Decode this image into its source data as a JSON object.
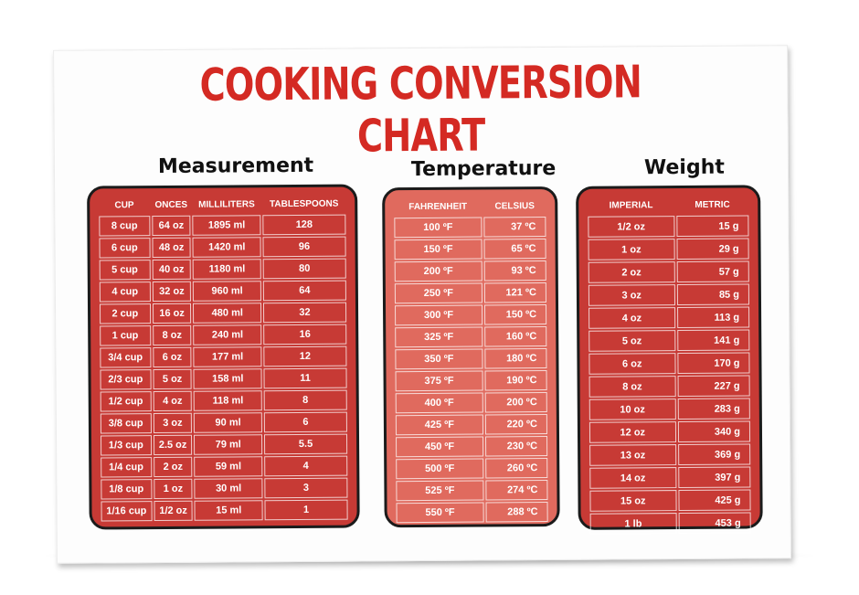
{
  "title": "COOKING CONVERSION CHART",
  "measurement": {
    "heading": "Measurement",
    "columns": [
      "CUP",
      "ONCES",
      "MILLILITERS",
      "TABLESPOONS"
    ],
    "rows": [
      [
        "8 cup",
        "64 oz",
        "1895 ml",
        "128"
      ],
      [
        "6 cup",
        "48 oz",
        "1420 ml",
        "96"
      ],
      [
        "5 cup",
        "40 oz",
        "1180 ml",
        "80"
      ],
      [
        "4 cup",
        "32 oz",
        "960 ml",
        "64"
      ],
      [
        "2 cup",
        "16 oz",
        "480 ml",
        "32"
      ],
      [
        "1 cup",
        "8 oz",
        "240 ml",
        "16"
      ],
      [
        "3/4 cup",
        "6 oz",
        "177 ml",
        "12"
      ],
      [
        "2/3 cup",
        "5 oz",
        "158 ml",
        "11"
      ],
      [
        "1/2 cup",
        "4 oz",
        "118 ml",
        "8"
      ],
      [
        "3/8 cup",
        "3 oz",
        "90 ml",
        "6"
      ],
      [
        "1/3 cup",
        "2.5 oz",
        "79 ml",
        "5.5"
      ],
      [
        "1/4 cup",
        "2 oz",
        "59 ml",
        "4"
      ],
      [
        "1/8 cup",
        "1 oz",
        "30 ml",
        "3"
      ],
      [
        "1/16 cup",
        "1/2 oz",
        "15 ml",
        "1"
      ]
    ]
  },
  "temperature": {
    "heading": "Temperature",
    "columns": [
      "FAHRENHEIT",
      "CELSIUS"
    ],
    "rows": [
      [
        "100 ºF",
        "37 ºC"
      ],
      [
        "150 ºF",
        "65 ºC"
      ],
      [
        "200 ºF",
        "93 ºC"
      ],
      [
        "250 ºF",
        "121 ºC"
      ],
      [
        "300 ºF",
        "150 ºC"
      ],
      [
        "325 ºF",
        "160 ºC"
      ],
      [
        "350 ºF",
        "180 ºC"
      ],
      [
        "375 ºF",
        "190 ºC"
      ],
      [
        "400 ºF",
        "200 ºC"
      ],
      [
        "425 ºF",
        "220 ºC"
      ],
      [
        "450 ºF",
        "230 ºC"
      ],
      [
        "500 ºF",
        "260 ºC"
      ],
      [
        "525 ºF",
        "274 ºC"
      ],
      [
        "550 ºF",
        "288 ºC"
      ]
    ]
  },
  "weight": {
    "heading": "Weight",
    "columns": [
      "IMPERIAL",
      "METRIC"
    ],
    "rows": [
      [
        "1/2 oz",
        "15 g"
      ],
      [
        "1 oz",
        "29 g"
      ],
      [
        "2 oz",
        "57 g"
      ],
      [
        "3 oz",
        "85 g"
      ],
      [
        "4 oz",
        "113 g"
      ],
      [
        "5 oz",
        "141 g"
      ],
      [
        "6 oz",
        "170 g"
      ],
      [
        "8 oz",
        "227 g"
      ],
      [
        "10 oz",
        "283 g"
      ],
      [
        "12 oz",
        "340 g"
      ],
      [
        "13 oz",
        "369 g"
      ],
      [
        "14 oz",
        "397 g"
      ],
      [
        "15 oz",
        "425 g"
      ],
      [
        "1 lb",
        "453 g"
      ]
    ]
  },
  "colors": {
    "title": "#d42a23",
    "measurement_panel": "#c73a35",
    "temperature_panel": "#e06a5e",
    "weight_panel": "#c73a35"
  }
}
